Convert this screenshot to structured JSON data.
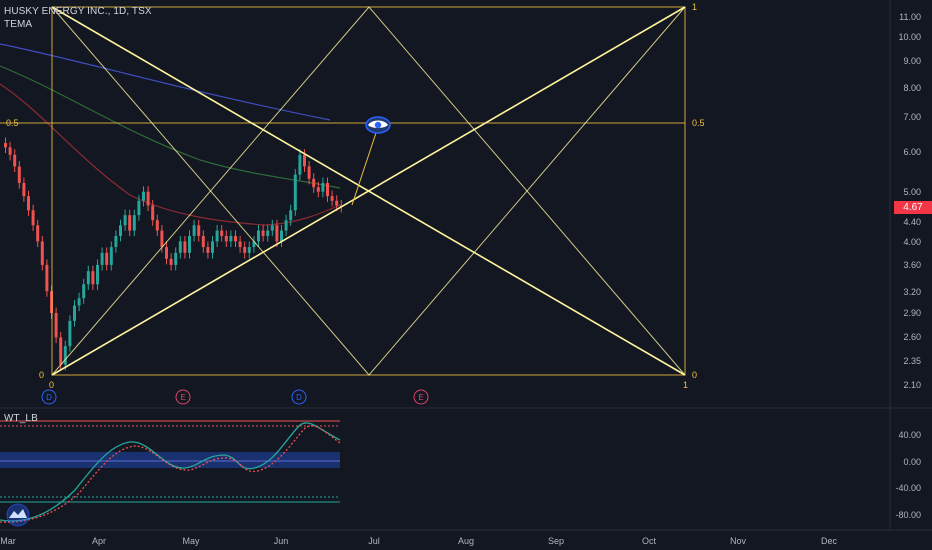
{
  "header": {
    "symbol_title": "HUSKY ENERGY INC., 1D, TSX",
    "indicator_1": "TEMA",
    "indicator_2": "WT_LB"
  },
  "price_axis": {
    "ticks": [
      "11.00",
      "10.00",
      "9.00",
      "8.00",
      "7.00",
      "6.00",
      "5.00",
      "4.40",
      "4.00",
      "3.60",
      "3.20",
      "2.90",
      "2.60",
      "2.35",
      "2.10"
    ],
    "current_price": "4.67"
  },
  "oscillator_axis": {
    "ticks": [
      "40.00",
      "0.00",
      "-40.00",
      "-80.00"
    ]
  },
  "time_axis": {
    "labels": [
      "Mar",
      "Apr",
      "May",
      "Jun",
      "Jul",
      "Aug",
      "Sep",
      "Oct",
      "Nov",
      "Dec"
    ]
  },
  "gann_box": {
    "left_levels": [
      "0.5",
      "0"
    ],
    "right_levels": [
      "1",
      "0.5",
      "0"
    ],
    "bottom_left": "0",
    "bottom_right": "1"
  },
  "event_markers": [
    "D",
    "E",
    "D",
    "E"
  ],
  "colors": {
    "background": "#131722",
    "up_candle": "#26a69a",
    "down_candle": "#ef5350",
    "gann_lines": "#fff59d",
    "gann_box": "#f0c040",
    "price_tag": "#f23645"
  },
  "chart_data": {
    "type": "candlestick",
    "symbol": "HUSKY ENERGY INC., 1D, TSX",
    "y_ticks": [
      11.0,
      10.0,
      9.0,
      8.0,
      7.0,
      6.0,
      5.0,
      4.4,
      4.0,
      3.6,
      3.2,
      2.9,
      2.6,
      2.35,
      2.1
    ],
    "y_scale": "log",
    "current_price": 4.67,
    "x_months": [
      "Mar",
      "Apr",
      "May",
      "Jun",
      "Jul",
      "Aug",
      "Sep",
      "Oct",
      "Nov",
      "Dec"
    ],
    "close_approx": [
      6.1,
      5.9,
      5.6,
      5.2,
      4.9,
      4.6,
      4.3,
      4.0,
      3.6,
      3.2,
      2.9,
      2.6,
      2.3,
      2.5,
      2.8,
      3.0,
      3.1,
      3.3,
      3.5,
      3.3,
      3.6,
      3.8,
      3.6,
      3.9,
      4.1,
      4.3,
      4.5,
      4.2,
      4.5,
      4.8,
      5.0,
      4.7,
      4.4,
      4.2,
      3.9,
      3.7,
      3.6,
      3.8,
      4.0,
      3.8,
      4.1,
      4.3,
      4.1,
      3.9,
      3.8,
      4.0,
      4.2,
      4.1,
      4.0,
      4.1,
      4.0,
      3.9,
      3.8,
      3.9,
      4.0,
      4.2,
      4.1,
      4.2,
      4.3,
      4.0,
      4.2,
      4.4,
      4.6,
      5.4,
      5.9,
      5.6,
      5.3,
      5.1,
      5.0,
      5.2,
      4.9,
      4.8,
      4.7,
      4.67
    ],
    "oscillator": {
      "name": "WT_LB",
      "y_ticks": [
        40,
        0,
        -40,
        -80
      ],
      "overbought": 60,
      "oversold": -53
    }
  }
}
